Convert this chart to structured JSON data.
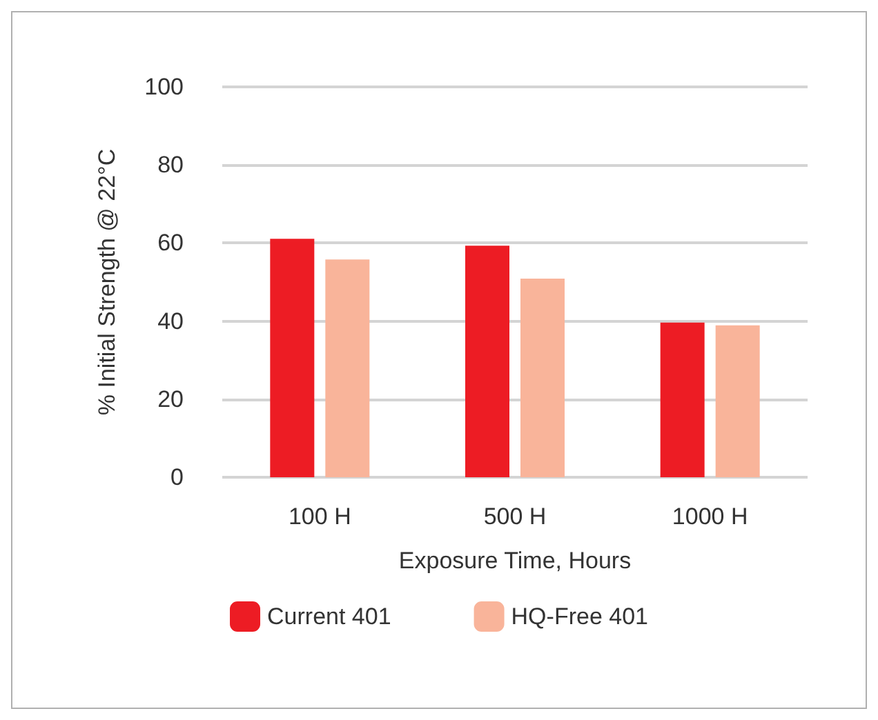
{
  "chart_data": {
    "type": "bar",
    "xlabel": "Exposure Time, Hours",
    "ylabel": "% Initial Strength @ 22°C",
    "categories": [
      "100 H",
      "500 H",
      "1000 H"
    ],
    "series": [
      {
        "name": "Current 401",
        "color": "#ed1c24",
        "values": [
          61.1,
          59.3,
          39.6
        ]
      },
      {
        "name": "HQ-Free 401",
        "color": "#f9b49a",
        "values": [
          55.8,
          50.9,
          38.9
        ]
      }
    ],
    "ylim": [
      0,
      100
    ],
    "yticks": [
      0,
      20,
      40,
      60,
      80,
      100
    ],
    "grid": "y",
    "legend": "bottom"
  }
}
